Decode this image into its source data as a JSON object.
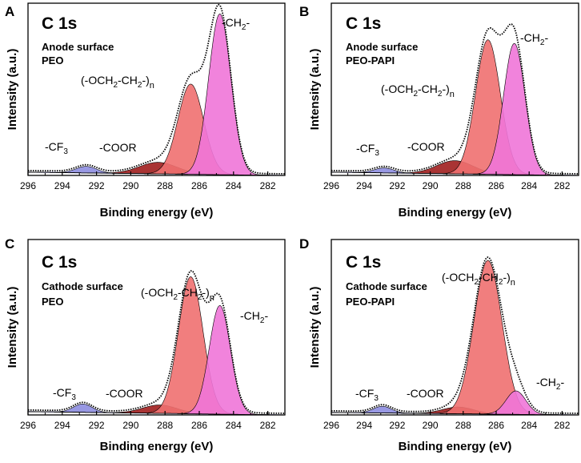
{
  "chart_data": [
    {
      "id": "A",
      "type": "area",
      "panel_label": "A",
      "title": "C 1s",
      "subtitle_lines": [
        "Anode surface",
        "PEO"
      ],
      "xlabel": "Binding energy (eV)",
      "ylabel": "Intensity (a.u.)",
      "xlim": [
        296,
        281
      ],
      "x_ticks": [
        296,
        294,
        292,
        290,
        288,
        286,
        284,
        282
      ],
      "ylim": [
        0,
        1.05
      ],
      "baseline": {
        "left": 0.02,
        "right": 0.0
      },
      "peaks": [
        {
          "name": "CF3",
          "label_main": "-CF",
          "sub": "3",
          "center": 292.6,
          "height": 0.04,
          "width": 0.6,
          "color": "#8d8de0"
        },
        {
          "name": "COOR",
          "label_main": "-COOR",
          "center": 288.4,
          "height": 0.07,
          "width": 1.1,
          "color": "#a01e1e"
        },
        {
          "name": "OCH2CH2",
          "label_main": "(-OCH",
          "sub": "2",
          "label_mid": "-CH",
          "sub2": "2",
          "label_end": "-)",
          "sub3": "n",
          "center": 286.5,
          "height": 0.55,
          "width": 0.75,
          "color": "#f07070"
        },
        {
          "name": "CH2",
          "label_main": "-CH",
          "sub": "2",
          "label_end": "-",
          "center": 284.8,
          "height": 0.98,
          "width": 0.65,
          "color": "#f075d8"
        }
      ]
    },
    {
      "id": "B",
      "type": "area",
      "panel_label": "B",
      "title": "C 1s",
      "subtitle_lines": [
        "Anode surface",
        "PEO-PAPI"
      ],
      "xlabel": "Binding energy (eV)",
      "ylabel": "Intensity (a.u.)",
      "xlim": [
        296,
        281
      ],
      "x_ticks": [
        296,
        294,
        292,
        290,
        288,
        286,
        284,
        282
      ],
      "ylim": [
        0,
        1.05
      ],
      "baseline": {
        "left": 0.02,
        "right": 0.0
      },
      "peaks": [
        {
          "name": "CF3",
          "label_main": "-CF",
          "sub": "3",
          "center": 292.8,
          "height": 0.03,
          "width": 0.6,
          "color": "#8d8de0"
        },
        {
          "name": "COOR",
          "label_main": "-COOR",
          "center": 288.5,
          "height": 0.08,
          "width": 1.1,
          "color": "#a01e1e"
        },
        {
          "name": "OCH2CH2",
          "label_main": "(-OCH",
          "sub": "2",
          "label_mid": "-CH",
          "sub2": "2",
          "label_end": "-)",
          "sub3": "n",
          "center": 286.5,
          "height": 0.82,
          "width": 0.75,
          "color": "#f07070"
        },
        {
          "name": "CH2",
          "label_main": "-CH",
          "sub": "2",
          "label_end": "-",
          "center": 284.9,
          "height": 0.8,
          "width": 0.65,
          "color": "#f075d8"
        }
      ]
    },
    {
      "id": "C",
      "type": "area",
      "panel_label": "C",
      "title": "C 1s",
      "subtitle_lines": [
        "Cathode surface",
        "PEO"
      ],
      "xlabel": "Binding energy (eV)",
      "ylabel": "Intensity (a.u.)",
      "xlim": [
        296,
        281
      ],
      "x_ticks": [
        296,
        294,
        292,
        290,
        288,
        286,
        284,
        282
      ],
      "ylim": [
        0,
        1.05
      ],
      "baseline": {
        "left": 0.02,
        "right": 0.0
      },
      "peaks": [
        {
          "name": "CF3",
          "label_main": "-CF",
          "sub": "3",
          "center": 292.8,
          "height": 0.05,
          "width": 0.55,
          "color": "#8d8de0"
        },
        {
          "name": "COOR",
          "label_main": "-COOR",
          "center": 288.3,
          "height": 0.05,
          "width": 1.0,
          "color": "#a01e1e"
        },
        {
          "name": "OCH2CH2",
          "label_main": "(-OCH",
          "sub": "2",
          "label_mid": "-CH",
          "sub2": "2",
          "label_end": "-)",
          "sub3": "n",
          "center": 286.5,
          "height": 0.82,
          "width": 0.72,
          "color": "#f07070"
        },
        {
          "name": "CH2",
          "label_main": "-CH",
          "sub": "2",
          "label_end": "-",
          "center": 284.8,
          "height": 0.65,
          "width": 0.62,
          "color": "#f075d8"
        }
      ]
    },
    {
      "id": "D",
      "type": "area",
      "panel_label": "D",
      "title": "C 1s",
      "subtitle_lines": [
        "Cathode surface",
        "PEO-PAPI"
      ],
      "xlabel": "Binding energy (eV)",
      "ylabel": "Intensity (a.u.)",
      "xlim": [
        296,
        281
      ],
      "x_ticks": [
        296,
        294,
        292,
        290,
        288,
        286,
        284,
        282
      ],
      "ylim": [
        0,
        1.05
      ],
      "baseline": {
        "left": 0.015,
        "right": 0.0
      },
      "peaks": [
        {
          "name": "CF3",
          "label_main": "-CF",
          "sub": "3",
          "center": 292.9,
          "height": 0.04,
          "width": 0.55,
          "color": "#8d8de0"
        },
        {
          "name": "COOR",
          "label_main": "-COOR",
          "center": 288.3,
          "height": 0.04,
          "width": 0.95,
          "color": "#a01e1e"
        },
        {
          "name": "OCH2CH2",
          "label_main": "(-OCH",
          "sub": "2",
          "label_mid": "-CH",
          "sub2": "2",
          "label_end": "-)",
          "sub3": "n",
          "center": 286.5,
          "height": 0.92,
          "width": 0.85,
          "color": "#f07070"
        },
        {
          "name": "CH2",
          "label_main": "-CH",
          "sub": "2",
          "label_end": "-",
          "center": 284.8,
          "height": 0.14,
          "width": 0.6,
          "color": "#f075d8"
        }
      ]
    }
  ]
}
